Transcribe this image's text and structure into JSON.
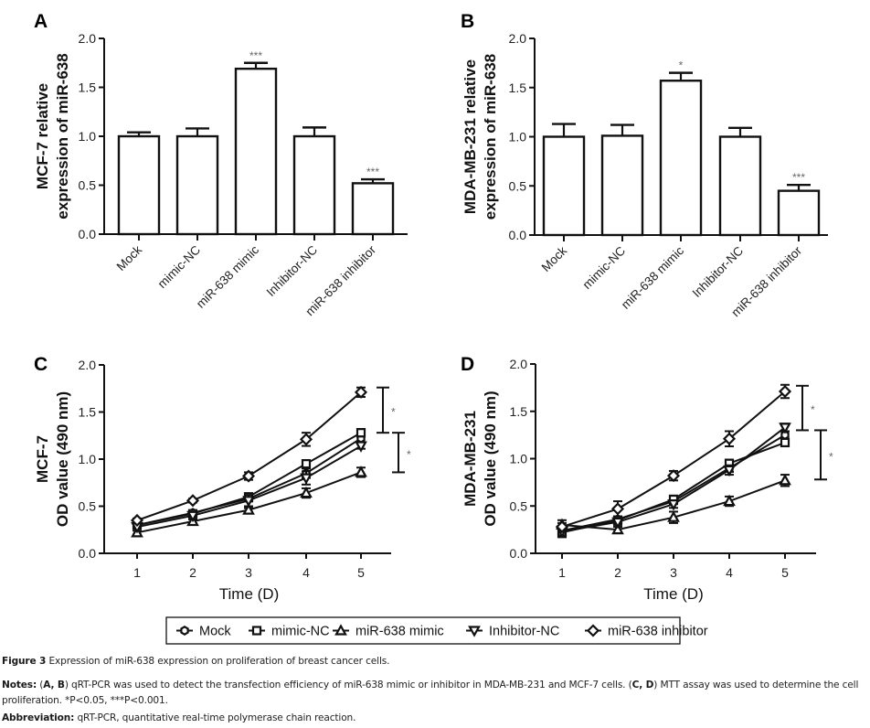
{
  "chart_data": [
    {
      "panel": "A",
      "type": "bar",
      "ylabel_lines": [
        "MCF-7 relative",
        "expression of miR-638"
      ],
      "xlabel": "",
      "ylim": [
        0,
        2.0
      ],
      "yticks": [
        "0.0",
        "0.5",
        "1.0",
        "1.5",
        "2.0"
      ],
      "categories": [
        "Mock",
        "mimic-NC",
        "miR-638 mimic",
        "Inhibitor-NC",
        "miR-638 inhibitor"
      ],
      "values": [
        1.0,
        1.0,
        1.69,
        1.0,
        0.52
      ],
      "errors": [
        0.04,
        0.08,
        0.06,
        0.09,
        0.04
      ],
      "annotations": [
        "",
        "",
        "***",
        "",
        "***"
      ]
    },
    {
      "panel": "B",
      "type": "bar",
      "ylabel_lines": [
        "MDA-MB-231 relative",
        "expression of miR-638"
      ],
      "xlabel": "",
      "ylim": [
        0,
        2.0
      ],
      "yticks": [
        "0.0",
        "0.5",
        "1.0",
        "1.5",
        "2.0"
      ],
      "categories": [
        "Mock",
        "mimic-NC",
        "miR-638 mimic",
        "Inhibitor-NC",
        "miR-638 inhibitor"
      ],
      "values": [
        1.0,
        1.01,
        1.57,
        1.0,
        0.45
      ],
      "errors": [
        0.13,
        0.11,
        0.08,
        0.09,
        0.06
      ],
      "annotations": [
        "",
        "",
        "*",
        "",
        "***"
      ]
    },
    {
      "panel": "C",
      "type": "line",
      "ylabel_lines": [
        "MCF-7",
        "OD value (490 nm)"
      ],
      "xlabel": "Time (D)",
      "ylim": [
        0,
        2.0
      ],
      "yticks": [
        "0.0",
        "0.5",
        "1.0",
        "1.5",
        "2.0"
      ],
      "x": [
        1,
        2,
        3,
        4,
        5
      ],
      "series": [
        {
          "name": "Mock",
          "marker": "hexagon",
          "values": [
            0.3,
            0.43,
            0.58,
            0.85,
            1.22
          ],
          "errors": [
            0.02,
            0.02,
            0.03,
            0.05,
            0.04
          ]
        },
        {
          "name": "mimic-NC",
          "marker": "square",
          "values": [
            0.3,
            0.42,
            0.6,
            0.95,
            1.28
          ],
          "errors": [
            0.02,
            0.03,
            0.03,
            0.04,
            0.04
          ]
        },
        {
          "name": "miR-638 mimic",
          "marker": "triangle",
          "values": [
            0.22,
            0.34,
            0.46,
            0.64,
            0.86
          ],
          "errors": [
            0.02,
            0.02,
            0.02,
            0.05,
            0.05
          ]
        },
        {
          "name": "Inhibitor-NC",
          "marker": "triangle-down",
          "values": [
            0.28,
            0.4,
            0.56,
            0.8,
            1.14
          ],
          "errors": [
            0.02,
            0.02,
            0.06,
            0.07,
            0.03
          ]
        },
        {
          "name": "miR-638 inhibitor",
          "marker": "diamond",
          "values": [
            0.35,
            0.56,
            0.82,
            1.21,
            1.71
          ],
          "errors": [
            0.02,
            0.02,
            0.04,
            0.07,
            0.05
          ]
        }
      ],
      "brackets": [
        {
          "from": 1.28,
          "to": 1.76,
          "label": "*"
        },
        {
          "from": 0.86,
          "to": 1.28,
          "label": "*"
        }
      ]
    },
    {
      "panel": "D",
      "type": "line",
      "ylabel_lines": [
        "MDA-MB-231",
        "OD value (490 nm)"
      ],
      "xlabel": "Time (D)",
      "ylim": [
        0,
        2.0
      ],
      "yticks": [
        "0.0",
        "0.5",
        "1.0",
        "1.5",
        "2.0"
      ],
      "x": [
        1,
        2,
        3,
        4,
        5
      ],
      "series": [
        {
          "name": "Mock",
          "marker": "hexagon",
          "values": [
            0.24,
            0.36,
            0.55,
            0.9,
            1.25
          ],
          "errors": [
            0.03,
            0.03,
            0.03,
            0.04,
            0.04
          ]
        },
        {
          "name": "mimic-NC",
          "marker": "square",
          "values": [
            0.22,
            0.35,
            0.57,
            0.95,
            1.17
          ],
          "errors": [
            0.05,
            0.03,
            0.04,
            0.04,
            0.04
          ]
        },
        {
          "name": "miR-638 mimic",
          "marker": "triangle",
          "values": [
            0.3,
            0.25,
            0.38,
            0.55,
            0.77
          ],
          "errors": [
            0.05,
            0.03,
            0.06,
            0.05,
            0.06
          ]
        },
        {
          "name": "Inhibitor-NC",
          "marker": "triangle-down",
          "values": [
            0.23,
            0.33,
            0.52,
            0.88,
            1.33
          ],
          "errors": [
            0.04,
            0.03,
            0.04,
            0.05,
            0.04
          ]
        },
        {
          "name": "miR-638 inhibitor",
          "marker": "diamond",
          "values": [
            0.28,
            0.47,
            0.82,
            1.21,
            1.71
          ],
          "errors": [
            0.04,
            0.08,
            0.05,
            0.08,
            0.07
          ]
        }
      ],
      "brackets": [
        {
          "from": 1.3,
          "to": 1.77,
          "label": "*"
        },
        {
          "from": 0.78,
          "to": 1.3,
          "label": "*"
        }
      ]
    }
  ],
  "legend": {
    "items": [
      "Mock",
      "mimic-NC",
      "miR-638 mimic",
      "Inhibitor-NC",
      "miR-638 inhibitor"
    ],
    "markers": [
      "hexagon",
      "square",
      "triangle",
      "triangle-down",
      "diamond"
    ]
  },
  "caption": {
    "figure_label": "Figure 3",
    "figure_title": " Expression of miR-638 expression on proliferation of breast cancer cells.",
    "notes_label": "Notes:",
    "notes_open": " (",
    "notes_ab": "A, B",
    "notes_text1": ") qRT-PCR was used to detect the transfection efficiency of miR-638 mimic or inhibitor in MDA-MB-231 and MCF-7 cells. (",
    "notes_cd": "C, D",
    "notes_text2": ") MTT assay was used to determine the cell proliferation. *P<0.05, ***P<0.001.",
    "abbrev_label": "Abbreviation:",
    "abbrev_text": " qRT-PCR, quantitative real-time polymerase chain reaction."
  },
  "panels": [
    "A",
    "B",
    "C",
    "D"
  ]
}
